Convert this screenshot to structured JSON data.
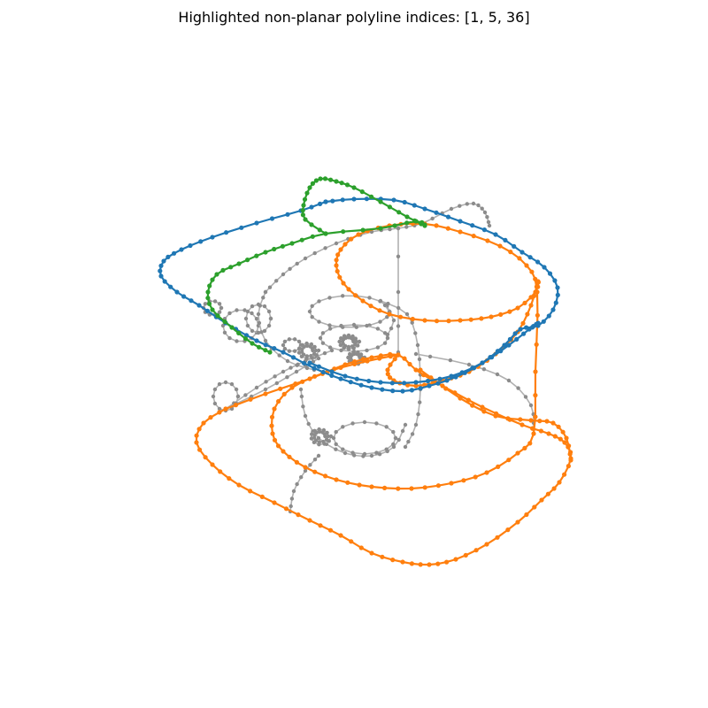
{
  "title": "Highlighted non-planar polyline indices: [1, 5, 36]",
  "colors": {
    "background": "#ffffff",
    "base_line": "#b0b0b0",
    "base_marker": "#8c8c8c",
    "highlight": [
      "#1f77b4",
      "#ff7f0e",
      "#2ca02c"
    ]
  }
}
